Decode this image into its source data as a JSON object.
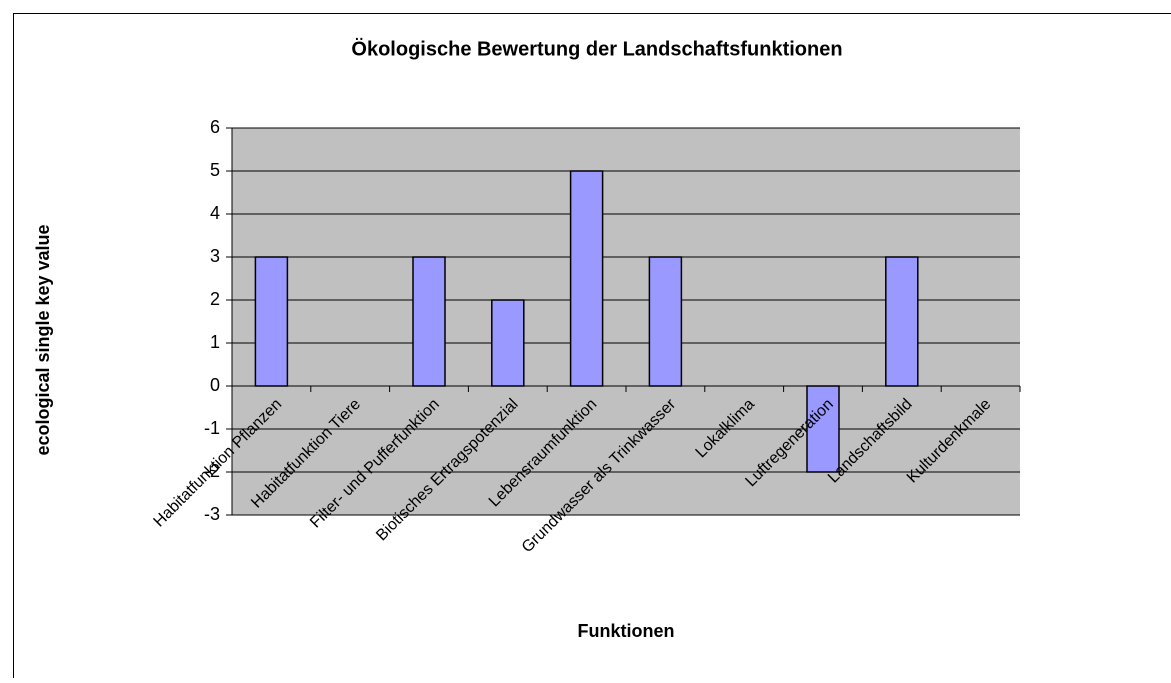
{
  "chart_data": {
    "type": "bar",
    "title": "Ökologische Bewertung der Landschaftsfunktionen",
    "x_label": "Funktionen",
    "y_label": "ecological single key value",
    "categories": [
      "Habitatfunktion Pflanzen",
      "Habitatfunktion Tiere",
      "Filter- und Pufferfunktion",
      "Biotisches Ertragspotenzial",
      "Lebensraumfunktion",
      "Grundwasser als Trinkwasser",
      "Lokalklima",
      "Luftregeneration",
      "Landschaftsbild",
      "Kulturdenkmale"
    ],
    "values": [
      3,
      0,
      3,
      2,
      5,
      3,
      0,
      -2,
      3,
      0
    ],
    "color": "#9999ff",
    "ylim": [
      -3,
      6
    ],
    "yticks": [
      -3,
      -2,
      -1,
      0,
      1,
      2,
      3,
      4,
      5,
      6
    ],
    "grid": true
  }
}
